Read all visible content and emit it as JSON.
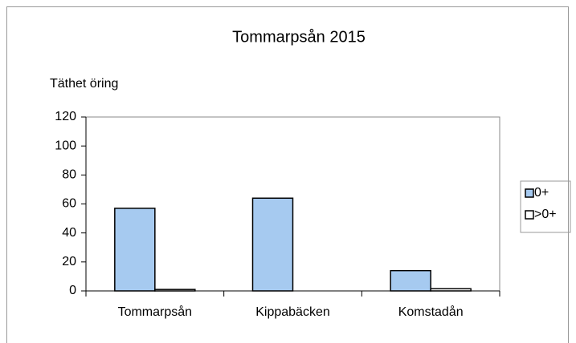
{
  "chart_data": {
    "type": "bar",
    "title": "Tommarpsån 2015",
    "y_label": "Täthet öring",
    "categories": [
      "Tommarpsån",
      "Kippabäcken",
      "Komstadån"
    ],
    "series": [
      {
        "name": "0+",
        "color": "#a6caf0",
        "values": [
          57,
          64,
          14
        ]
      },
      {
        "name": ">0+",
        "color": "#ffffff",
        "values": [
          1,
          0,
          1.5
        ]
      }
    ],
    "ylim": [
      0,
      120
    ],
    "yticks": [
      0,
      20,
      40,
      60,
      80,
      100,
      120
    ],
    "legend": "right"
  }
}
